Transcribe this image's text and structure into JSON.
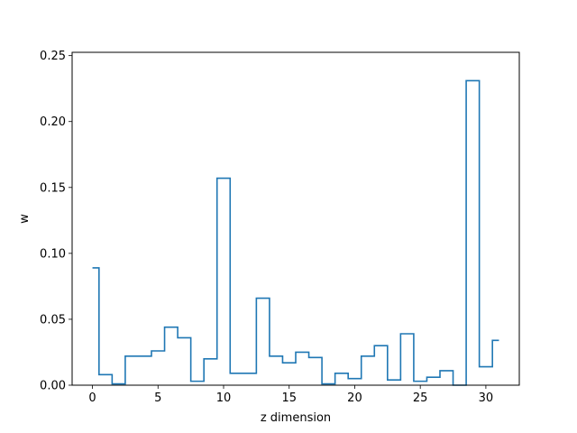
{
  "chart_data": {
    "type": "line",
    "drawstyle": "steps-mid",
    "title": "",
    "xlabel": "z dimension",
    "ylabel": "w",
    "xlim": [
      -1.55,
      32.55
    ],
    "ylim": [
      0,
      0.2525
    ],
    "xticks": [
      0,
      5,
      10,
      15,
      20,
      25,
      30
    ],
    "xtick_labels": [
      "0",
      "5",
      "10",
      "15",
      "20",
      "25",
      "30"
    ],
    "yticks": [
      0,
      0.05,
      0.1,
      0.15,
      0.2,
      0.25
    ],
    "ytick_labels": [
      "0.00",
      "0.05",
      "0.10",
      "0.15",
      "0.20",
      "0.25"
    ],
    "grid": false,
    "line_color": "#1f77b4",
    "x": [
      0,
      1,
      2,
      3,
      4,
      5,
      6,
      7,
      8,
      9,
      10,
      11,
      12,
      13,
      14,
      15,
      16,
      17,
      18,
      19,
      20,
      21,
      22,
      23,
      24,
      25,
      26,
      27,
      28,
      29,
      30,
      31
    ],
    "values": [
      0.089,
      0.008,
      0.001,
      0.022,
      0.022,
      0.026,
      0.044,
      0.036,
      0.003,
      0.02,
      0.157,
      0.009,
      0.009,
      0.066,
      0.022,
      0.017,
      0.025,
      0.021,
      0.001,
      0.009,
      0.005,
      0.022,
      0.03,
      0.004,
      0.039,
      0.003,
      0.006,
      0.011,
      0.0,
      0.231,
      0.014,
      0.034
    ]
  }
}
